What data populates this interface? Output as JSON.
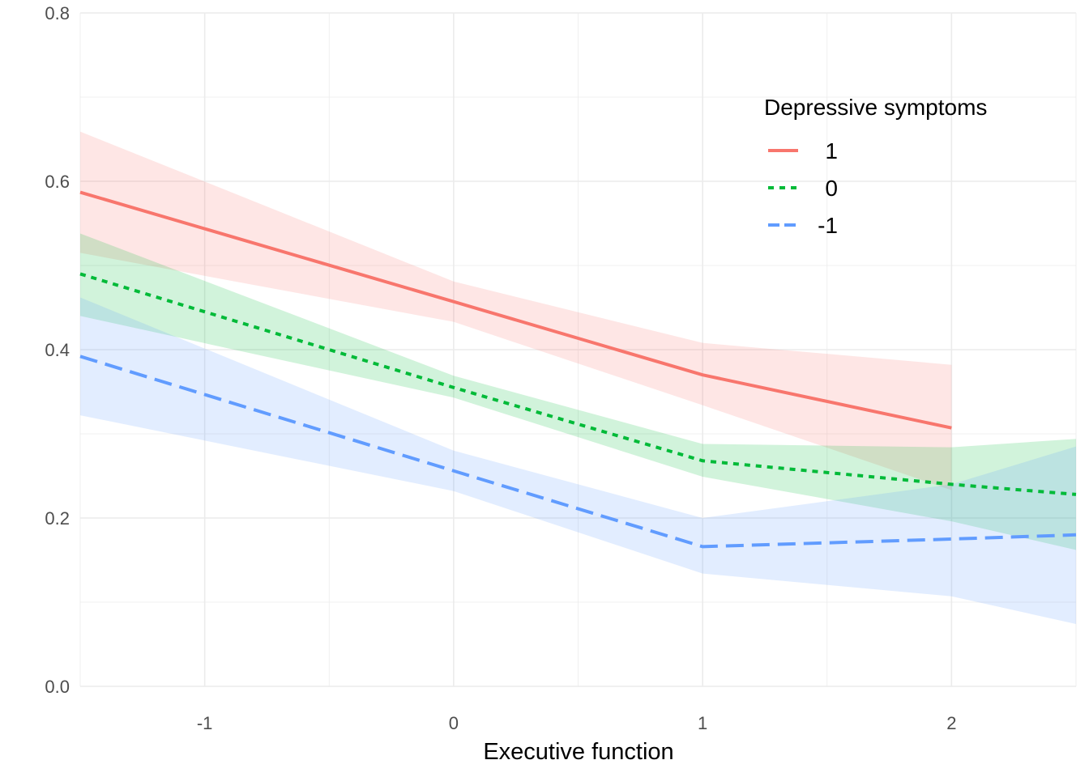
{
  "chart_data": {
    "type": "line",
    "title": "",
    "xlabel": "Executive function",
    "ylabel": "",
    "xlim": [
      -1.5,
      2.5
    ],
    "ylim": [
      0,
      0.8
    ],
    "x_ticks": [
      "-1",
      "0",
      "1",
      "2"
    ],
    "y_ticks": [
      "0.0",
      "0.2",
      "0.4",
      "0.6",
      "0.8"
    ],
    "grid": true,
    "legend": {
      "title": "Depressive symptoms",
      "position": "top-right"
    },
    "series": [
      {
        "name": "1",
        "color": "#F8766D",
        "line_style": "solid",
        "x": [
          -1.5,
          0,
          1,
          2
        ],
        "y": [
          0.587,
          0.457,
          0.37,
          0.307
        ],
        "lower": [
          0.515,
          0.433,
          0.334,
          0.233
        ],
        "upper": [
          0.659,
          0.481,
          0.408,
          0.382
        ]
      },
      {
        "name": "0",
        "color": "#00BA38",
        "line_style": "dotted",
        "x": [
          -1.5,
          0,
          1,
          2,
          2.5
        ],
        "y": [
          0.49,
          0.355,
          0.268,
          0.24,
          0.228
        ],
        "lower": [
          0.44,
          0.343,
          0.249,
          0.196,
          0.162
        ],
        "upper": [
          0.538,
          0.369,
          0.288,
          0.284,
          0.294
        ]
      },
      {
        "name": "-1",
        "color": "#619CFF",
        "line_style": "dashed",
        "x": [
          -1.5,
          0,
          1,
          2,
          2.5
        ],
        "y": [
          0.392,
          0.256,
          0.166,
          0.175,
          0.18
        ],
        "lower": [
          0.322,
          0.232,
          0.134,
          0.107,
          0.074
        ],
        "upper": [
          0.462,
          0.28,
          0.2,
          0.24,
          0.285
        ]
      }
    ]
  }
}
